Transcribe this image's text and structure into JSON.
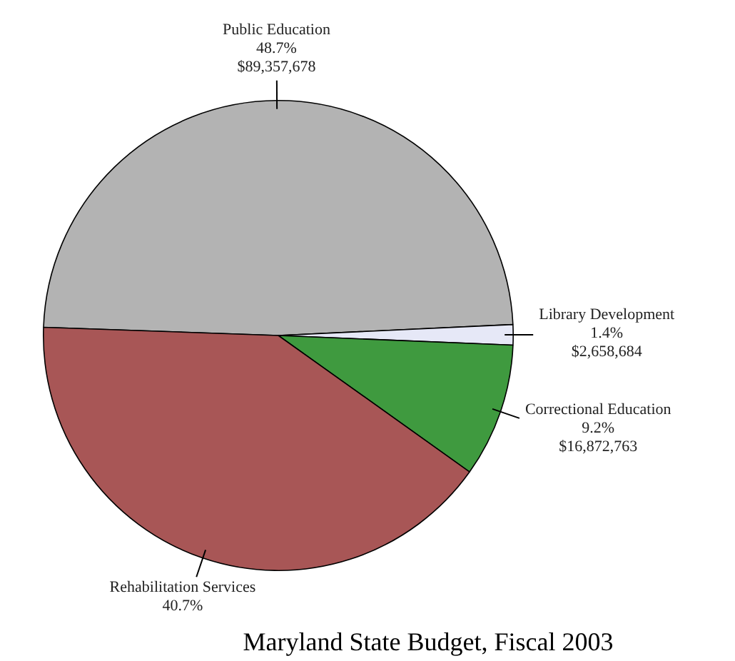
{
  "chart_data": {
    "type": "pie",
    "title": "Maryland State Budget, Fiscal 2003",
    "categories": [
      "Public Education",
      "Library Development",
      "Correctional Education",
      "Rehabilitation Services"
    ],
    "values": [
      48.7,
      1.4,
      9.2,
      40.7
    ],
    "colors": [
      "#b3b3b3",
      "#e6e8f7",
      "#3f9a3f",
      "#a85656"
    ],
    "value_labels": [
      "48.7%\n$89,357,678",
      "1.4%\n$2,658,684",
      "9.2%\n$16,872,763",
      "40.7%"
    ],
    "legend": false
  }
}
